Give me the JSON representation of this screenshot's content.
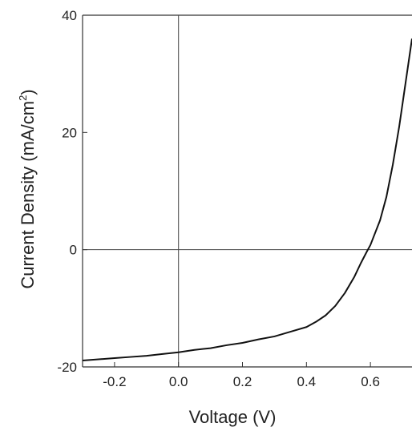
{
  "chart_data": {
    "type": "line",
    "title": "",
    "xlabel": "Voltage (V)",
    "ylabel_main": "Current Density (mA/cm",
    "ylabel_sup": "2",
    "ylabel_close": ")",
    "xlim": [
      -0.3,
      0.73
    ],
    "ylim": [
      -20,
      40
    ],
    "xticks": [
      -0.2,
      0.0,
      0.2,
      0.4,
      0.6
    ],
    "xtick_labels": [
      "-0.2",
      "0.0",
      "0.2",
      "0.4",
      "0.6"
    ],
    "yticks": [
      -20,
      0,
      20,
      40
    ],
    "ytick_labels": [
      "-20",
      "0",
      "20",
      "40"
    ],
    "grid": false,
    "reference_lines": {
      "x": 0,
      "y": 0
    },
    "series": [
      {
        "color": "#111111",
        "x": [
          -0.3,
          -0.25,
          -0.2,
          -0.15,
          -0.1,
          -0.05,
          0.0,
          0.05,
          0.1,
          0.15,
          0.2,
          0.25,
          0.3,
          0.35,
          0.4,
          0.43,
          0.46,
          0.49,
          0.52,
          0.55,
          0.57,
          0.59,
          0.6,
          0.61,
          0.63,
          0.65,
          0.67,
          0.69,
          0.71,
          0.73
        ],
        "y": [
          -18.9,
          -18.7,
          -18.5,
          -18.3,
          -18.1,
          -17.8,
          -17.5,
          -17.1,
          -16.8,
          -16.3,
          -15.9,
          -15.3,
          -14.8,
          -14.0,
          -13.2,
          -12.3,
          -11.2,
          -9.6,
          -7.4,
          -4.6,
          -2.3,
          -0.2,
          0.8,
          2.2,
          5.0,
          9.0,
          14.5,
          21.0,
          28.5,
          36.0
        ]
      }
    ]
  }
}
